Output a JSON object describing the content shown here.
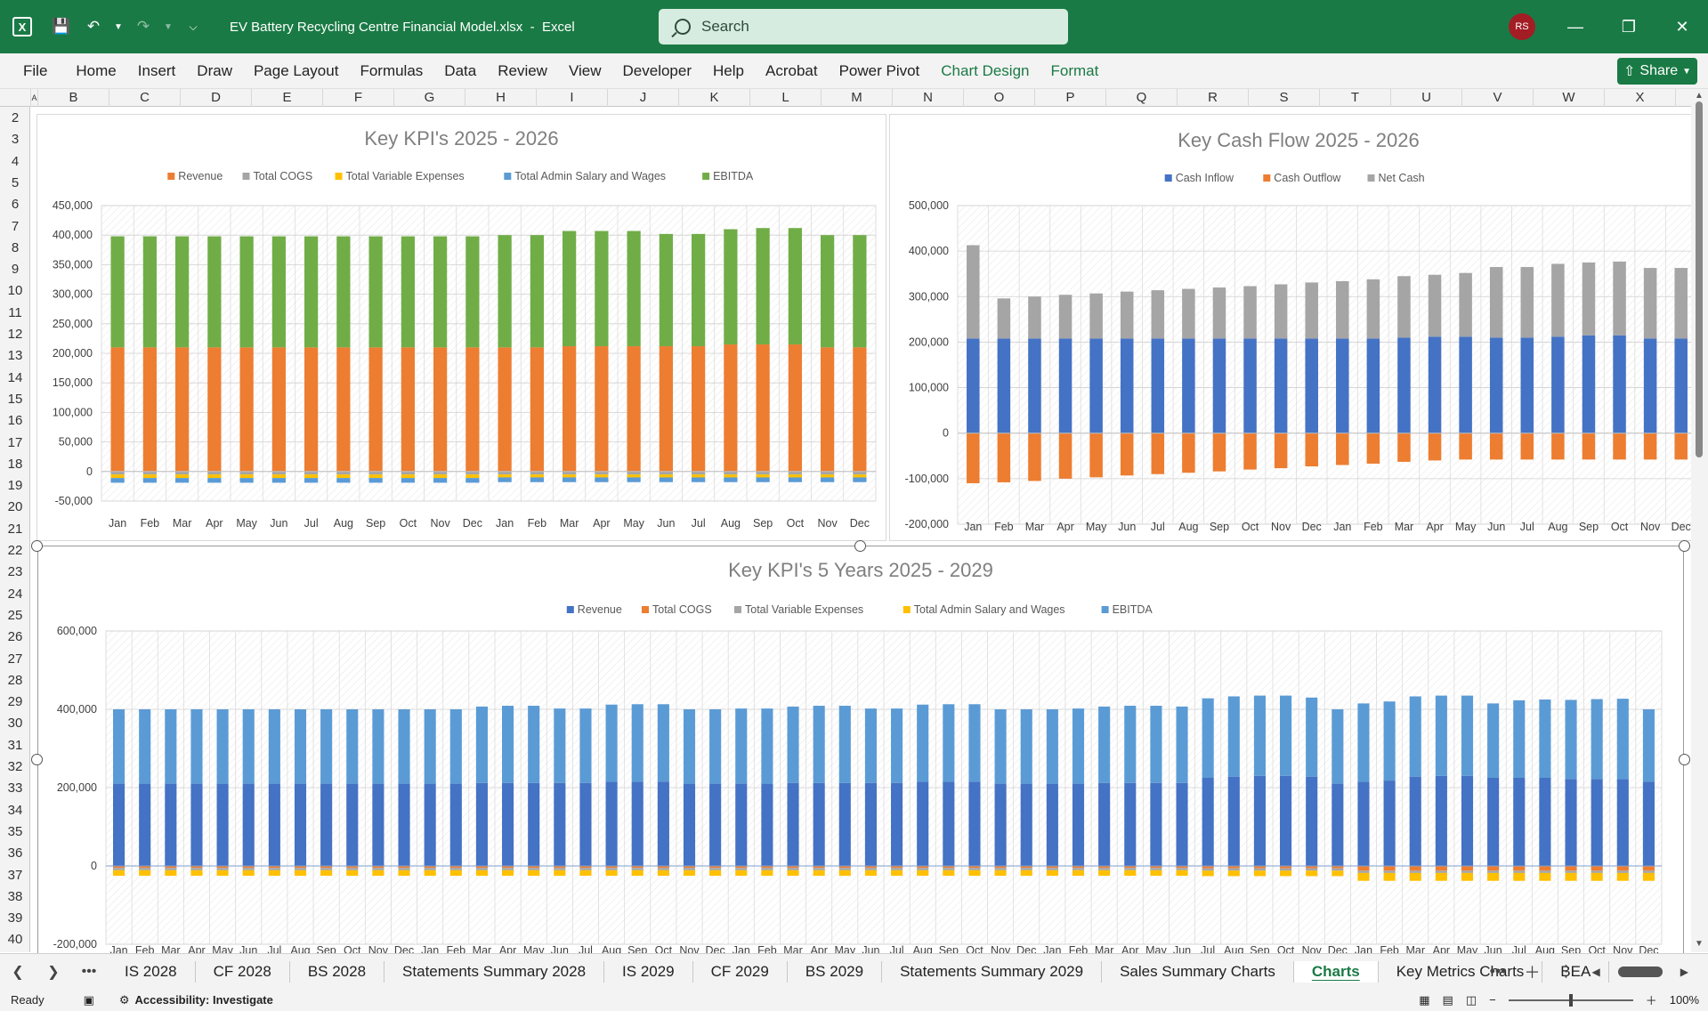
{
  "window": {
    "file_title": "EV Battery Recycling Centre Financial Model.xlsx",
    "separator": "-",
    "app_name": "Excel",
    "search_placeholder": "Search",
    "user_initials": "RS"
  },
  "ribbon": {
    "tabs": [
      "File",
      "Home",
      "Insert",
      "Draw",
      "Page Layout",
      "Formulas",
      "Data",
      "Review",
      "View",
      "Developer",
      "Help",
      "Acrobat",
      "Power Pivot",
      "Chart Design",
      "Format"
    ],
    "share_label": "Share"
  },
  "grid": {
    "columns": [
      "A",
      "B",
      "C",
      "D",
      "E",
      "F",
      "G",
      "H",
      "I",
      "J",
      "K",
      "L",
      "M",
      "N",
      "O",
      "P",
      "Q",
      "R",
      "S",
      "T",
      "U",
      "V",
      "W",
      "X"
    ],
    "rows": [
      "2",
      "3",
      "4",
      "5",
      "6",
      "7",
      "8",
      "9",
      "10",
      "11",
      "12",
      "13",
      "14",
      "15",
      "16",
      "17",
      "18",
      "19",
      "20",
      "21",
      "22",
      "23",
      "24",
      "25",
      "26",
      "27",
      "28",
      "29",
      "30",
      "31",
      "32",
      "33",
      "34",
      "35",
      "36",
      "37",
      "38",
      "39",
      "40"
    ]
  },
  "sheet_tabs": {
    "tabs": [
      "IS 2028",
      "CF 2028",
      "BS 2028",
      "Statements Summary 2028",
      "IS 2029",
      "CF 2029",
      "BS 2029",
      "Statements Summary 2029",
      "Sales Summary Charts",
      "Charts",
      "Key Metrics Charts",
      "BEA"
    ],
    "active": "Charts",
    "more_label": "•••"
  },
  "status": {
    "ready": "Ready",
    "accessibility": "Accessibility: Investigate",
    "zoom": "100%"
  },
  "colors": {
    "title_bar": "#1a7a45",
    "revenue_orange": "#ed7d31",
    "cogs_gray": "#a5a5a5",
    "variable_gold": "#ffc000",
    "admin_blue": "#5b9bd5",
    "ebitda_green": "#70ad47",
    "cash_inflow_blue": "#4472c4"
  },
  "chart_data": [
    {
      "type": "bar",
      "stacked": true,
      "title": "Key KPI's 2025 - 2026",
      "categories": [
        "Jan",
        "Feb",
        "Mar",
        "Apr",
        "May",
        "Jun",
        "Jul",
        "Aug",
        "Sep",
        "Oct",
        "Nov",
        "Dec",
        "Jan",
        "Feb",
        "Mar",
        "Apr",
        "May",
        "Jun",
        "Jul",
        "Aug",
        "Sep",
        "Oct",
        "Nov",
        "Dec"
      ],
      "y_ticks": [
        "450,000",
        "400,000",
        "350,000",
        "300,000",
        "250,000",
        "200,000",
        "150,000",
        "100,000",
        "50,000",
        "0",
        "-50,000"
      ],
      "ylim": [
        -50000,
        450000
      ],
      "grid": true,
      "legend_position": "top",
      "series": [
        {
          "name": "Revenue",
          "color": "#ed7d31",
          "values": [
            210000,
            210000,
            210000,
            210000,
            210000,
            210000,
            210000,
            210000,
            210000,
            210000,
            210000,
            210000,
            210000,
            210000,
            212000,
            212000,
            212000,
            212000,
            212000,
            215000,
            215000,
            215000,
            210000,
            210000
          ]
        },
        {
          "name": "Total COGS",
          "color": "#a5a5a5",
          "values": [
            -5000,
            -5000,
            -5000,
            -5000,
            -5000,
            -5000,
            -5000,
            -5000,
            -5000,
            -5000,
            -5000,
            -5000,
            -5000,
            -5000,
            -5000,
            -5000,
            -5000,
            -5000,
            -5000,
            -5000,
            -5000,
            -5000,
            -5000,
            -5000
          ]
        },
        {
          "name": "Total Variable Expenses",
          "color": "#ffc000",
          "values": [
            -6000,
            -6000,
            -6000,
            -6000,
            -6000,
            -6000,
            -6000,
            -6000,
            -6000,
            -6000,
            -6000,
            -6000,
            -5000,
            -5000,
            -5000,
            -5000,
            -5000,
            -5000,
            -5000,
            -5000,
            -5000,
            -5000,
            -5000,
            -5000
          ]
        },
        {
          "name": "Total Admin Salary and Wages",
          "color": "#5b9bd5",
          "values": [
            -8000,
            -8000,
            -8000,
            -8000,
            -8000,
            -8000,
            -8000,
            -8000,
            -8000,
            -8000,
            -8000,
            -8000,
            -8000,
            -8000,
            -8000,
            -8000,
            -8000,
            -8000,
            -8000,
            -8000,
            -8000,
            -8000,
            -8000,
            -8000
          ]
        },
        {
          "name": "EBITDA",
          "color": "#70ad47",
          "values": [
            188000,
            188000,
            188000,
            188000,
            188000,
            188000,
            188000,
            188000,
            188000,
            188000,
            188000,
            188000,
            190000,
            190000,
            195000,
            195000,
            195000,
            190000,
            190000,
            195000,
            197000,
            197000,
            190000,
            190000
          ]
        }
      ]
    },
    {
      "type": "bar",
      "stacked": true,
      "title": "Key Cash Flow 2025 - 2026",
      "categories": [
        "Jan",
        "Feb",
        "Mar",
        "Apr",
        "May",
        "Jun",
        "Jul",
        "Aug",
        "Sep",
        "Oct",
        "Nov",
        "Dec",
        "Jan",
        "Feb",
        "Mar",
        "Apr",
        "May",
        "Jun",
        "Jul",
        "Aug",
        "Sep",
        "Oct",
        "Nov",
        "Dec"
      ],
      "y_ticks": [
        "500,000",
        "400,000",
        "300,000",
        "200,000",
        "100,000",
        "0",
        "-100,000",
        "-200,000"
      ],
      "ylim": [
        -200000,
        500000
      ],
      "grid": true,
      "legend_position": "top",
      "series": [
        {
          "name": "Cash Inflow",
          "color": "#4472c4",
          "values": [
            208000,
            208000,
            208000,
            208000,
            208000,
            208000,
            208000,
            208000,
            208000,
            208000,
            208000,
            208000,
            208000,
            208000,
            210000,
            212000,
            212000,
            210000,
            210000,
            212000,
            215000,
            215000,
            208000,
            208000
          ]
        },
        {
          "name": "Cash Outflow",
          "color": "#ed7d31",
          "values": [
            -110000,
            -108000,
            -105000,
            -100000,
            -97000,
            -93000,
            -90000,
            -87000,
            -84000,
            -80000,
            -77000,
            -73000,
            -70000,
            -67000,
            -63000,
            -60000,
            -58000,
            -58000,
            -58000,
            -58000,
            -58000,
            -58000,
            -58000,
            -58000
          ]
        },
        {
          "name": "Net Cash",
          "color": "#a5a5a5",
          "values": [
            205000,
            88000,
            92000,
            96000,
            99000,
            103000,
            106000,
            109000,
            112000,
            115000,
            119000,
            123000,
            126000,
            130000,
            135000,
            136000,
            140000,
            155000,
            155000,
            160000,
            160000,
            162000,
            155000,
            155000
          ]
        }
      ]
    },
    {
      "type": "bar",
      "stacked": true,
      "title": "Key KPI's 5 Years 2025 - 2029",
      "categories": [
        "Jan",
        "Feb",
        "Mar",
        "Apr",
        "May",
        "Jun",
        "Jul",
        "Aug",
        "Sep",
        "Oct",
        "Nov",
        "Dec",
        "Jan",
        "Feb",
        "Mar",
        "Apr",
        "May",
        "Jun",
        "Jul",
        "Aug",
        "Sep",
        "Oct",
        "Nov",
        "Dec",
        "Jan",
        "Feb",
        "Mar",
        "Apr",
        "May",
        "Jun",
        "Jul",
        "Aug",
        "Sep",
        "Oct",
        "Nov",
        "Dec",
        "Jan",
        "Feb",
        "Mar",
        "Apr",
        "May",
        "Jun",
        "Jul",
        "Aug",
        "Sep",
        "Oct",
        "Nov",
        "Dec",
        "Jan",
        "Feb",
        "Mar",
        "Apr",
        "May",
        "Jun",
        "Jul",
        "Aug",
        "Sep",
        "Oct",
        "Nov",
        "Dec"
      ],
      "y_ticks": [
        "600,000",
        "400,000",
        "200,000",
        "0",
        "-200,000"
      ],
      "ylim": [
        -200000,
        600000
      ],
      "grid": true,
      "legend_position": "top",
      "series": [
        {
          "name": "Revenue",
          "color": "#4472c4",
          "values": [
            210000,
            210000,
            210000,
            210000,
            210000,
            210000,
            210000,
            210000,
            210000,
            210000,
            210000,
            210000,
            210000,
            210000,
            212000,
            212000,
            212000,
            212000,
            212000,
            215000,
            215000,
            215000,
            210000,
            210000,
            210000,
            210000,
            212000,
            212000,
            212000,
            212000,
            212000,
            215000,
            215000,
            215000,
            210000,
            210000,
            210000,
            210000,
            212000,
            212000,
            212000,
            212000,
            225000,
            228000,
            230000,
            230000,
            228000,
            210000,
            215000,
            218000,
            228000,
            230000,
            230000,
            225000,
            225000,
            225000,
            222000,
            222000,
            222000,
            215000
          ]
        },
        {
          "name": "Total COGS",
          "color": "#ed7d31",
          "values": [
            -5000,
            -5000,
            -5000,
            -5000,
            -5000,
            -5000,
            -5000,
            -5000,
            -5000,
            -5000,
            -5000,
            -5000,
            -5000,
            -5000,
            -5000,
            -5000,
            -5000,
            -5000,
            -5000,
            -5000,
            -5000,
            -5000,
            -5000,
            -5000,
            -5000,
            -5000,
            -5000,
            -5000,
            -5000,
            -5000,
            -5000,
            -5000,
            -5000,
            -5000,
            -5000,
            -5000,
            -5000,
            -5000,
            -5000,
            -5000,
            -5000,
            -5000,
            -6000,
            -6000,
            -6000,
            -6000,
            -6000,
            -6000,
            -12000,
            -12000,
            -12000,
            -12000,
            -12000,
            -12000,
            -12000,
            -12000,
            -12000,
            -12000,
            -12000,
            -12000
          ]
        },
        {
          "name": "Total Variable Expenses",
          "color": "#a5a5a5",
          "values": [
            -6000,
            -6000,
            -6000,
            -6000,
            -6000,
            -6000,
            -6000,
            -6000,
            -6000,
            -6000,
            -6000,
            -6000,
            -6000,
            -6000,
            -6000,
            -6000,
            -6000,
            -6000,
            -6000,
            -6000,
            -6000,
            -6000,
            -6000,
            -6000,
            -6000,
            -6000,
            -6000,
            -6000,
            -6000,
            -6000,
            -6000,
            -6000,
            -6000,
            -6000,
            -6000,
            -6000,
            -6000,
            -6000,
            -6000,
            -6000,
            -6000,
            -6000,
            -6000,
            -6000,
            -6000,
            -6000,
            -6000,
            -6000,
            -6000,
            -6000,
            -6000,
            -6000,
            -6000,
            -6000,
            -6000,
            -6000,
            -6000,
            -6000,
            -6000,
            -6000
          ]
        },
        {
          "name": "Total Admin Salary and Wages",
          "color": "#ffc000",
          "values": [
            -14000,
            -14000,
            -14000,
            -14000,
            -14000,
            -14000,
            -14000,
            -14000,
            -14000,
            -14000,
            -14000,
            -14000,
            -14000,
            -14000,
            -14000,
            -14000,
            -14000,
            -14000,
            -14000,
            -14000,
            -14000,
            -14000,
            -14000,
            -14000,
            -14000,
            -14000,
            -14000,
            -14000,
            -14000,
            -14000,
            -14000,
            -14000,
            -14000,
            -14000,
            -14000,
            -14000,
            -14000,
            -14000,
            -14000,
            -14000,
            -14000,
            -14000,
            -14000,
            -14000,
            -14000,
            -14000,
            -14000,
            -14000,
            -20000,
            -20000,
            -20000,
            -20000,
            -20000,
            -20000,
            -20000,
            -20000,
            -20000,
            -20000,
            -20000,
            -20000
          ]
        },
        {
          "name": "EBITDA",
          "color": "#5b9bd5",
          "values": [
            190000,
            190000,
            190000,
            190000,
            190000,
            190000,
            190000,
            190000,
            190000,
            190000,
            190000,
            190000,
            190000,
            190000,
            195000,
            197000,
            197000,
            190000,
            190000,
            197000,
            198000,
            198000,
            190000,
            190000,
            192000,
            192000,
            195000,
            197000,
            197000,
            190000,
            190000,
            197000,
            198000,
            198000,
            190000,
            190000,
            190000,
            192000,
            195000,
            197000,
            197000,
            195000,
            203000,
            205000,
            205000,
            205000,
            202000,
            190000,
            200000,
            202000,
            205000,
            205000,
            205000,
            190000,
            198000,
            200000,
            202000,
            204000,
            205000,
            185000
          ]
        }
      ]
    }
  ]
}
